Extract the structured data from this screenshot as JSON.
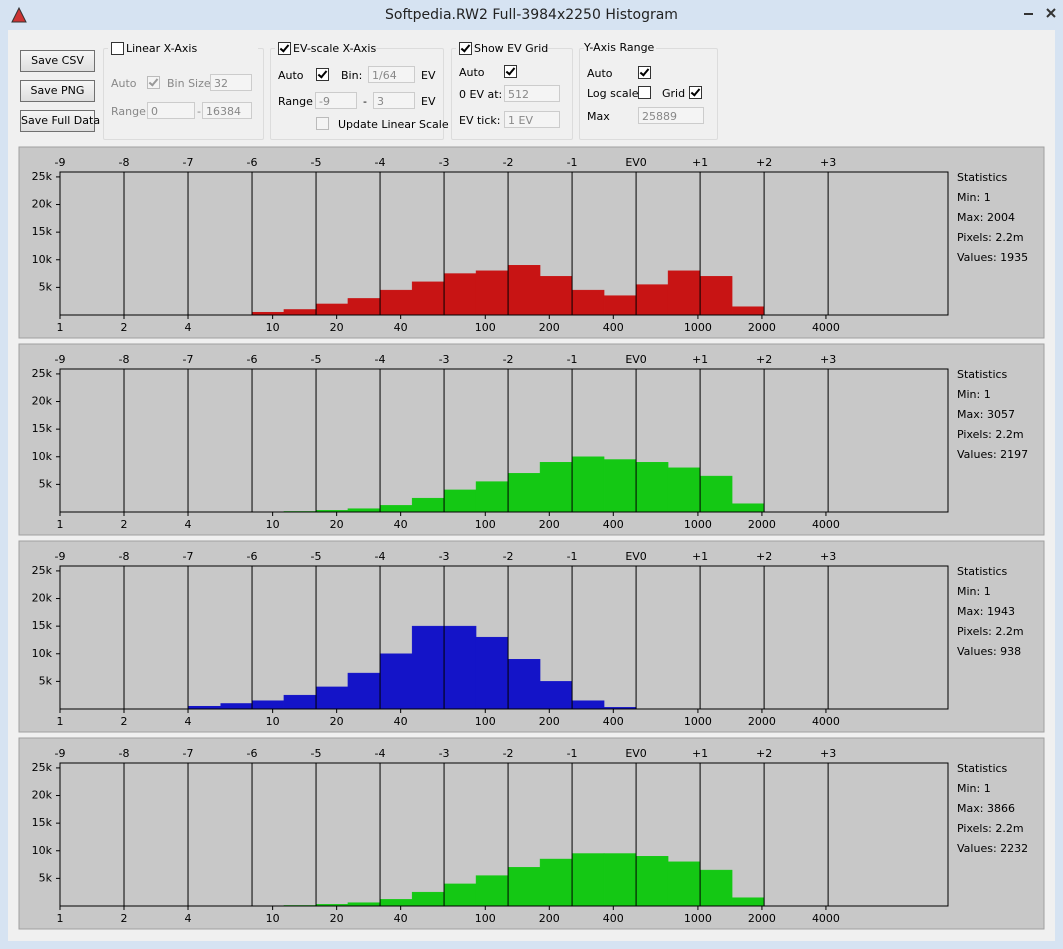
{
  "window": {
    "title": "Softpedia.RW2 Full-3984x2250 Histogram"
  },
  "toolbar": {
    "buttons": [
      "Save CSV",
      "Save PNG",
      "Save Full Data"
    ],
    "linear_x": {
      "label": "Linear X-Axis",
      "checked": false,
      "auto": "Auto",
      "auto_checked": true,
      "bin_size_label": "Bin Size:",
      "bin_size": 32,
      "range_label": "Range:",
      "range_from": 0,
      "range_sep": "-",
      "range_to": 16384
    },
    "ev_x": {
      "label": "EV-scale X-Axis",
      "checked": true,
      "auto": "Auto",
      "auto_checked": true,
      "bin_label": "Bin:",
      "bin": "1/64",
      "bin_unit": "EV",
      "range_label": "Range",
      "range_from": -9,
      "range_sep": "-",
      "range_to": 3,
      "range_unit": "EV",
      "update_label": "Update Linear Scale",
      "update_checked": false
    },
    "ev_grid": {
      "label": "Show EV Grid",
      "checked": true,
      "auto": "Auto",
      "auto_checked": true,
      "zero_label": "0 EV at:",
      "zero": 512,
      "tick_label": "EV tick:",
      "tick": "1 EV"
    },
    "y_range": {
      "label": "Y-Axis Range",
      "auto": "Auto",
      "auto_checked": true,
      "log_label": "Log scale",
      "log_checked": false,
      "grid_label": "Grid",
      "grid_checked": true,
      "max_label": "Max",
      "max": 25889
    }
  },
  "chart_data": [
    {
      "type": "histogram",
      "color": "#c81414",
      "log_x": true,
      "grid": true,
      "bins": [
        4,
        5.7,
        8,
        11.3,
        16,
        22.6,
        32,
        45.3,
        64,
        90.5,
        128,
        181,
        256,
        362,
        512,
        724,
        1024,
        1448,
        2048,
        2896
      ],
      "values": [
        0,
        0,
        500,
        1000,
        2000,
        3000,
        4500,
        6000,
        7500,
        8000,
        9000,
        7000,
        4500,
        3500,
        5500,
        8000,
        7000,
        1500,
        0
      ],
      "xlim": [
        1,
        15000
      ],
      "xticks": [
        1,
        2,
        4,
        10,
        20,
        40,
        100,
        200,
        400,
        1000,
        2000,
        4000
      ],
      "x2lim": [
        -9,
        4.873
      ],
      "x2ticks": [
        -9,
        -8,
        -7,
        -6,
        -5,
        -4,
        -3,
        -2,
        -1,
        {
          "value": 0,
          "label": "EV0"
        },
        {
          "value": 1,
          "label": "+1"
        },
        {
          "value": 2,
          "label": "+2"
        },
        {
          "value": 3,
          "label": "+3"
        }
      ],
      "ylim": [
        0,
        25889
      ],
      "yticks": [
        {
          "value": 5000,
          "label": "5k"
        },
        {
          "value": 10000,
          "label": "10k"
        },
        {
          "value": 15000,
          "label": "15k"
        },
        {
          "value": 20000,
          "label": "20k"
        },
        {
          "value": 25000,
          "label": "25k"
        }
      ],
      "stats": {
        "title": "Statistics",
        "lines": [
          "Min: 1",
          "Max: 2004",
          "Pixels: 2.2m",
          "Values: 1935"
        ]
      }
    },
    {
      "type": "histogram",
      "color": "#14c814",
      "log_x": true,
      "grid": true,
      "bins": [
        4,
        5.7,
        8,
        11.3,
        16,
        22.6,
        32,
        45.3,
        64,
        90.5,
        128,
        181,
        256,
        362,
        512,
        724,
        1024,
        1448,
        2048,
        2896
      ],
      "values": [
        0,
        0,
        0,
        100,
        300,
        600,
        1200,
        2500,
        4000,
        5500,
        7000,
        9000,
        10000,
        9500,
        9000,
        8000,
        6500,
        1500,
        0
      ],
      "xlim": [
        1,
        15000
      ],
      "xticks": [
        1,
        2,
        4,
        10,
        20,
        40,
        100,
        200,
        400,
        1000,
        2000,
        4000
      ],
      "x2lim": [
        -9,
        4.873
      ],
      "x2ticks": [
        -9,
        -8,
        -7,
        -6,
        -5,
        -4,
        -3,
        -2,
        -1,
        {
          "value": 0,
          "label": "EV0"
        },
        {
          "value": 1,
          "label": "+1"
        },
        {
          "value": 2,
          "label": "+2"
        },
        {
          "value": 3,
          "label": "+3"
        }
      ],
      "ylim": [
        0,
        25889
      ],
      "yticks": [
        {
          "value": 5000,
          "label": "5k"
        },
        {
          "value": 10000,
          "label": "10k"
        },
        {
          "value": 15000,
          "label": "15k"
        },
        {
          "value": 20000,
          "label": "20k"
        },
        {
          "value": 25000,
          "label": "25k"
        }
      ],
      "stats": {
        "title": "Statistics",
        "lines": [
          "Min: 1",
          "Max: 3057",
          "Pixels: 2.2m",
          "Values: 2197"
        ]
      }
    },
    {
      "type": "histogram",
      "color": "#1414c8",
      "log_x": true,
      "grid": true,
      "bins": [
        4,
        5.7,
        8,
        11.3,
        16,
        22.6,
        32,
        45.3,
        64,
        90.5,
        128,
        181,
        256,
        362,
        512,
        724,
        1024,
        1448,
        2048,
        2896
      ],
      "values": [
        500,
        1000,
        1500,
        2500,
        4000,
        6500,
        10000,
        15000,
        15000,
        13000,
        9000,
        5000,
        1500,
        300,
        0,
        0,
        0,
        0,
        0
      ],
      "xlim": [
        1,
        15000
      ],
      "xticks": [
        1,
        2,
        4,
        10,
        20,
        40,
        100,
        200,
        400,
        1000,
        2000,
        4000
      ],
      "x2lim": [
        -9,
        4.873
      ],
      "x2ticks": [
        -9,
        -8,
        -7,
        -6,
        -5,
        -4,
        -3,
        -2,
        -1,
        {
          "value": 0,
          "label": "EV0"
        },
        {
          "value": 1,
          "label": "+1"
        },
        {
          "value": 2,
          "label": "+2"
        },
        {
          "value": 3,
          "label": "+3"
        }
      ],
      "ylim": [
        0,
        25889
      ],
      "yticks": [
        {
          "value": 5000,
          "label": "5k"
        },
        {
          "value": 10000,
          "label": "10k"
        },
        {
          "value": 15000,
          "label": "15k"
        },
        {
          "value": 20000,
          "label": "20k"
        },
        {
          "value": 25000,
          "label": "25k"
        }
      ],
      "stats": {
        "title": "Statistics",
        "lines": [
          "Min: 1",
          "Max: 1943",
          "Pixels: 2.2m",
          "Values: 938"
        ]
      }
    },
    {
      "type": "histogram",
      "color": "#14c814",
      "log_x": true,
      "grid": true,
      "bins": [
        4,
        5.7,
        8,
        11.3,
        16,
        22.6,
        32,
        45.3,
        64,
        90.5,
        128,
        181,
        256,
        362,
        512,
        724,
        1024,
        1448,
        2048,
        2896
      ],
      "values": [
        0,
        0,
        0,
        100,
        300,
        600,
        1200,
        2500,
        4000,
        5500,
        7000,
        8500,
        9500,
        9500,
        9000,
        8000,
        6500,
        1500,
        0
      ],
      "xlim": [
        1,
        15000
      ],
      "xticks": [
        1,
        2,
        4,
        10,
        20,
        40,
        100,
        200,
        400,
        1000,
        2000,
        4000
      ],
      "x2lim": [
        -9,
        4.873
      ],
      "x2ticks": [
        -9,
        -8,
        -7,
        -6,
        -5,
        -4,
        -3,
        -2,
        -1,
        {
          "value": 0,
          "label": "EV0"
        },
        {
          "value": 1,
          "label": "+1"
        },
        {
          "value": 2,
          "label": "+2"
        },
        {
          "value": 3,
          "label": "+3"
        }
      ],
      "ylim": [
        0,
        25889
      ],
      "yticks": [
        {
          "value": 5000,
          "label": "5k"
        },
        {
          "value": 10000,
          "label": "10k"
        },
        {
          "value": 15000,
          "label": "15k"
        },
        {
          "value": 20000,
          "label": "20k"
        },
        {
          "value": 25000,
          "label": "25k"
        }
      ],
      "stats": {
        "title": "Statistics",
        "lines": [
          "Min: 1",
          "Max: 3866",
          "Pixels: 2.2m",
          "Values: 2232"
        ]
      }
    }
  ]
}
